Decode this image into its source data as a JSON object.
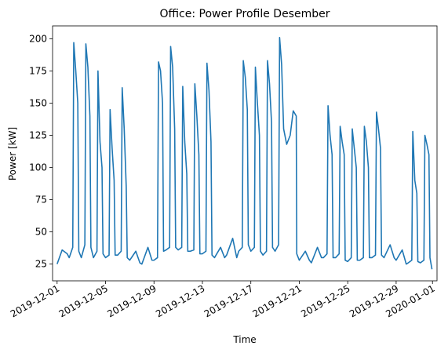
{
  "chart_data": {
    "type": "line",
    "title": "Office: Power Profile Desember",
    "xlabel": "Time",
    "ylabel": "Power [kW]",
    "xlim": [
      "2019-11-30T15:00",
      "2020-01-01T09:00"
    ],
    "xticks": [
      "2019-12-01",
      "2019-12-05",
      "2019-12-09",
      "2019-12-13",
      "2019-12-17",
      "2019-12-21",
      "2019-12-25",
      "2019-12-29",
      "2020-01-01"
    ],
    "ylim": [
      12,
      210
    ],
    "yticks": [
      25,
      50,
      75,
      100,
      125,
      150,
      175,
      200
    ],
    "grid": false,
    "x": [
      "2019-12-01T00:00",
      "2019-12-01T10:00",
      "2019-12-01T20:00",
      "2019-12-02T00:00",
      "2019-12-02T07:00",
      "2019-12-02T09:00",
      "2019-12-02T13:00",
      "2019-12-02T17:00",
      "2019-12-02T19:00",
      "2019-12-03T00:00",
      "2019-12-03T07:00",
      "2019-12-03T09:00",
      "2019-12-03T13:00",
      "2019-12-03T17:00",
      "2019-12-03T19:00",
      "2019-12-04T00:00",
      "2019-12-04T07:00",
      "2019-12-04T09:00",
      "2019-12-04T13:00",
      "2019-12-04T17:00",
      "2019-12-04T19:00",
      "2019-12-05T00:00",
      "2019-12-05T07:00",
      "2019-12-05T09:00",
      "2019-12-05T13:00",
      "2019-12-05T17:00",
      "2019-12-05T19:00",
      "2019-12-06T00:00",
      "2019-12-06T07:00",
      "2019-12-06T09:00",
      "2019-12-06T13:00",
      "2019-12-06T17:00",
      "2019-12-06T19:00",
      "2019-12-07T00:00",
      "2019-12-07T12:00",
      "2019-12-07T20:00",
      "2019-12-08T00:00",
      "2019-12-08T12:00",
      "2019-12-08T20:00",
      "2019-12-09T00:00",
      "2019-12-09T07:00",
      "2019-12-09T09:00",
      "2019-12-09T13:00",
      "2019-12-09T17:00",
      "2019-12-09T19:00",
      "2019-12-10T00:00",
      "2019-12-10T07:00",
      "2019-12-10T09:00",
      "2019-12-10T13:00",
      "2019-12-10T17:00",
      "2019-12-10T19:00",
      "2019-12-11T00:00",
      "2019-12-11T07:00",
      "2019-12-11T09:00",
      "2019-12-11T13:00",
      "2019-12-11T17:00",
      "2019-12-11T19:00",
      "2019-12-12T00:00",
      "2019-12-12T07:00",
      "2019-12-12T09:00",
      "2019-12-12T13:00",
      "2019-12-12T17:00",
      "2019-12-12T19:00",
      "2019-12-13T00:00",
      "2019-12-13T07:00",
      "2019-12-13T09:00",
      "2019-12-13T13:00",
      "2019-12-13T17:00",
      "2019-12-13T19:00",
      "2019-12-14T00:00",
      "2019-12-14T12:00",
      "2019-12-14T20:00",
      "2019-12-15T00:00",
      "2019-12-15T12:00",
      "2019-12-15T20:00",
      "2019-12-16T00:00",
      "2019-12-16T07:00",
      "2019-12-16T09:00",
      "2019-12-16T13:00",
      "2019-12-16T17:00",
      "2019-12-16T19:00",
      "2019-12-17T00:00",
      "2019-12-17T07:00",
      "2019-12-17T09:00",
      "2019-12-17T13:00",
      "2019-12-17T17:00",
      "2019-12-17T19:00",
      "2019-12-18T00:00",
      "2019-12-18T07:00",
      "2019-12-18T09:00",
      "2019-12-18T13:00",
      "2019-12-18T17:00",
      "2019-12-18T19:00",
      "2019-12-19T00:00",
      "2019-12-19T07:00",
      "2019-12-19T09:00",
      "2019-12-19T13:00",
      "2019-12-19T17:00",
      "2019-12-19T23:00",
      "2019-12-20T06:00",
      "2019-12-20T12:00",
      "2019-12-20T18:00",
      "2019-12-20T19:00",
      "2019-12-21T00:00",
      "2019-12-21T12:00",
      "2019-12-21T20:00",
      "2019-12-22T00:00",
      "2019-12-22T12:00",
      "2019-12-22T20:00",
      "2019-12-23T00:00",
      "2019-12-23T07:00",
      "2019-12-23T09:00",
      "2019-12-23T13:00",
      "2019-12-23T17:00",
      "2019-12-23T19:00",
      "2019-12-24T00:00",
      "2019-12-24T07:00",
      "2019-12-24T09:00",
      "2019-12-24T13:00",
      "2019-12-24T17:00",
      "2019-12-24T19:00",
      "2019-12-25T00:00",
      "2019-12-25T07:00",
      "2019-12-25T09:00",
      "2019-12-25T13:00",
      "2019-12-25T17:00",
      "2019-12-25T19:00",
      "2019-12-26T00:00",
      "2019-12-26T07:00",
      "2019-12-26T09:00",
      "2019-12-26T13:00",
      "2019-12-26T17:00",
      "2019-12-26T19:00",
      "2019-12-27T00:00",
      "2019-12-27T07:00",
      "2019-12-27T09:00",
      "2019-12-27T13:00",
      "2019-12-27T17:00",
      "2019-12-27T19:00",
      "2019-12-28T00:00",
      "2019-12-28T12:00",
      "2019-12-28T20:00",
      "2019-12-29T00:00",
      "2019-12-29T12:00",
      "2019-12-29T20:00",
      "2019-12-30T00:00",
      "2019-12-30T07:00",
      "2019-12-30T09:00",
      "2019-12-30T13:00",
      "2019-12-30T17:00",
      "2019-12-30T19:00",
      "2019-12-31T00:00",
      "2019-12-31T07:00",
      "2019-12-31T09:00",
      "2019-12-31T13:00",
      "2019-12-31T17:00",
      "2019-12-31T19:00",
      "2019-12-31T23:00"
    ],
    "series": [
      {
        "name": "Power",
        "color": "#1f77b4",
        "values": [
          25,
          36,
          33,
          30,
          38,
          197,
          175,
          150,
          35,
          30,
          40,
          196,
          178,
          140,
          38,
          30,
          35,
          175,
          120,
          100,
          33,
          30,
          32,
          145,
          115,
          90,
          32,
          32,
          35,
          162,
          130,
          85,
          30,
          28,
          35,
          26,
          25,
          38,
          28,
          28,
          30,
          182,
          175,
          150,
          35,
          36,
          38,
          194,
          178,
          130,
          38,
          36,
          38,
          163,
          120,
          95,
          35,
          35,
          36,
          165,
          140,
          110,
          33,
          33,
          35,
          181,
          160,
          120,
          32,
          30,
          38,
          30,
          32,
          45,
          30,
          35,
          38,
          183,
          170,
          145,
          40,
          35,
          38,
          178,
          150,
          125,
          35,
          32,
          35,
          183,
          165,
          135,
          38,
          35,
          40,
          201,
          180,
          130,
          118,
          125,
          144,
          140,
          33,
          28,
          35,
          28,
          26,
          38,
          30,
          30,
          33,
          148,
          125,
          110,
          30,
          30,
          33,
          132,
          120,
          110,
          28,
          27,
          30,
          130,
          115,
          100,
          28,
          28,
          30,
          132,
          120,
          100,
          30,
          30,
          32,
          143,
          130,
          115,
          32,
          30,
          40,
          30,
          28,
          36,
          25,
          26,
          28,
          128,
          90,
          80,
          27,
          26,
          28,
          125,
          118,
          110,
          30,
          21
        ]
      }
    ]
  }
}
